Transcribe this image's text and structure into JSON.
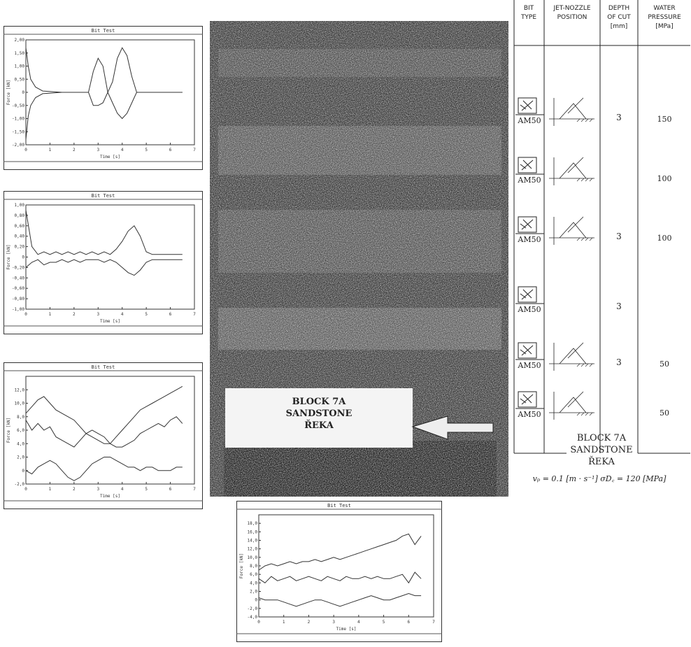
{
  "chart_data": [
    {
      "type": "line",
      "title": "Bit Test",
      "x_label": "Time [s]",
      "y_label": "Force [kN]",
      "xlim": [
        0,
        7
      ],
      "xticks": [
        0,
        1,
        2,
        3,
        4,
        5,
        6,
        7
      ],
      "ylim": [
        -2,
        2
      ],
      "yticks": [
        {
          "value": -2,
          "label": "-2,00"
        },
        {
          "value": -1.5,
          "label": "-1,50"
        },
        {
          "value": -1,
          "label": "-1,00"
        },
        {
          "value": -0.5,
          "label": "-0,50"
        },
        0,
        {
          "value": 0.5,
          "label": "0,50"
        },
        {
          "value": 1,
          "label": "1,00"
        },
        {
          "value": 1.5,
          "label": "1,50"
        },
        {
          "value": 2,
          "label": "2,00"
        }
      ],
      "x": [
        0,
        0.1,
        0.2,
        0.4,
        0.7,
        1.5,
        2.6,
        2.8,
        3.0,
        3.2,
        3.4,
        3.6,
        3.8,
        4.0,
        4.2,
        4.4,
        4.6,
        5.5,
        6.5
      ],
      "series": [
        {
          "color": "#333333",
          "values": [
            1.7,
            1.0,
            0.5,
            0.2,
            0.05,
            0,
            0,
            0.8,
            1.3,
            1.0,
            0,
            0.4,
            1.3,
            1.7,
            1.4,
            0.6,
            0,
            0,
            0
          ]
        },
        {
          "color": "#333333",
          "values": [
            -1.8,
            -0.9,
            -0.5,
            -0.2,
            -0.05,
            0,
            0,
            -0.5,
            -0.5,
            -0.4,
            0,
            -0.4,
            -0.8,
            -1.0,
            -0.8,
            -0.4,
            0,
            0,
            0
          ]
        }
      ]
    },
    {
      "type": "line",
      "title": "Bit Test",
      "x_label": "Time [s]",
      "y_label": "Force [kN]",
      "xlim": [
        0,
        7
      ],
      "xticks": [
        0,
        1,
        2,
        3,
        4,
        5,
        6,
        7
      ],
      "ylim": [
        -1,
        1
      ],
      "yticks": [
        {
          "value": -1,
          "label": "-1,00"
        },
        {
          "value": -0.8,
          "label": "-0,80"
        },
        {
          "value": -0.6,
          "label": "-0,60"
        },
        {
          "value": -0.4,
          "label": "-0,40"
        },
        {
          "value": -0.2,
          "label": "-0,20"
        },
        0,
        {
          "value": 0.2,
          "label": "0,20"
        },
        {
          "value": 0.4,
          "label": "0,40"
        },
        {
          "value": 0.6,
          "label": "0,60"
        },
        {
          "value": 0.8,
          "label": "0,80"
        },
        {
          "value": 1,
          "label": "1,00"
        }
      ],
      "x": [
        0,
        0.25,
        0.5,
        0.75,
        1,
        1.25,
        1.5,
        1.75,
        2,
        2.25,
        2.5,
        2.75,
        3,
        3.25,
        3.5,
        3.75,
        4,
        4.25,
        4.5,
        4.75,
        5,
        5.25,
        5.5,
        5.75,
        6,
        6.25,
        6.5
      ],
      "series": [
        {
          "color": "#333333",
          "values": [
            0.9,
            0.2,
            0.05,
            0.1,
            0.05,
            0.1,
            0.05,
            0.1,
            0.05,
            0.1,
            0.05,
            0.1,
            0.05,
            0.1,
            0.05,
            0.15,
            0.3,
            0.5,
            0.6,
            0.4,
            0.1,
            0.05,
            0.05,
            0.05,
            0.05,
            0.05,
            0.05
          ]
        },
        {
          "color": "#333333",
          "values": [
            -0.2,
            -0.1,
            -0.05,
            -0.15,
            -0.1,
            -0.1,
            -0.05,
            -0.1,
            -0.05,
            -0.1,
            -0.05,
            -0.05,
            -0.05,
            -0.1,
            -0.05,
            -0.1,
            -0.2,
            -0.3,
            -0.35,
            -0.25,
            -0.1,
            -0.05,
            -0.05,
            -0.05,
            -0.05,
            -0.05,
            -0.05
          ]
        }
      ]
    },
    {
      "type": "line",
      "title": "Bit Test",
      "x_label": "Time [s]",
      "y_label": "Force [kN]",
      "xlim": [
        0,
        7
      ],
      "xticks": [
        0,
        1,
        2,
        3,
        4,
        5,
        6,
        7
      ],
      "ylim": [
        -2,
        14
      ],
      "yticks": [
        {
          "value": -2,
          "label": "-2,0"
        },
        0,
        {
          "value": 2,
          "label": "2,0"
        },
        {
          "value": 4,
          "label": "4,0"
        },
        {
          "value": 6,
          "label": "6,0"
        },
        {
          "value": 8,
          "label": "8,0"
        },
        {
          "value": 10,
          "label": "10,0"
        },
        {
          "value": 12,
          "label": "12,0"
        }
      ],
      "x": [
        0,
        0.25,
        0.5,
        0.75,
        1,
        1.25,
        1.5,
        1.75,
        2,
        2.25,
        2.5,
        2.75,
        3,
        3.25,
        3.5,
        3.75,
        4,
        4.25,
        4.5,
        4.75,
        5,
        5.25,
        5.5,
        5.75,
        6,
        6.25,
        6.5
      ],
      "series": [
        {
          "color": "#333333",
          "values": [
            8.5,
            9.5,
            10.5,
            11,
            10,
            9,
            8.5,
            8,
            7.5,
            6.5,
            5.5,
            5,
            4.5,
            4,
            4,
            5,
            6,
            7,
            8,
            9,
            9.5,
            10,
            10.5,
            11,
            11.5,
            12,
            12.5
          ]
        },
        {
          "color": "#333333",
          "values": [
            7.5,
            6,
            7,
            6,
            6.5,
            5,
            4.5,
            4,
            3.5,
            4.5,
            5.5,
            6,
            5.5,
            5,
            4,
            3.5,
            3.5,
            4,
            4.5,
            5.5,
            6,
            6.5,
            7,
            6.5,
            7.5,
            8,
            7
          ]
        },
        {
          "color": "#333333",
          "values": [
            0,
            -0.5,
            0.5,
            1,
            1.5,
            1,
            0,
            -1,
            -1.5,
            -1,
            0,
            1,
            1.5,
            2,
            2,
            1.5,
            1,
            0.5,
            0.5,
            0,
            0.5,
            0.5,
            0,
            0,
            0,
            0.5,
            0.5
          ]
        }
      ]
    },
    {
      "type": "line",
      "title": "Bit Test",
      "x_label": "Time [s]",
      "y_label": "Force [kN]",
      "xlim": [
        0,
        7
      ],
      "xticks": [
        0,
        1,
        2,
        3,
        4,
        5,
        6,
        7
      ],
      "ylim": [
        -4,
        20
      ],
      "yticks": [
        {
          "value": -4,
          "label": "-4,0"
        },
        {
          "value": -2,
          "label": "-2,0"
        },
        0,
        {
          "value": 2,
          "label": "2,0"
        },
        {
          "value": 4,
          "label": "4,0"
        },
        {
          "value": 6,
          "label": "6,0"
        },
        {
          "value": 8,
          "label": "8,0"
        },
        {
          "value": 10,
          "label": "10,0"
        },
        {
          "value": 12,
          "label": "12,0"
        },
        {
          "value": 14,
          "label": "14,0"
        },
        {
          "value": 16,
          "label": "16,0"
        },
        {
          "value": 18,
          "label": "18,0"
        }
      ],
      "x": [
        0,
        0.25,
        0.5,
        0.75,
        1,
        1.25,
        1.5,
        1.75,
        2,
        2.25,
        2.5,
        2.75,
        3,
        3.25,
        3.5,
        3.75,
        4,
        4.25,
        4.5,
        4.75,
        5,
        5.25,
        5.5,
        5.75,
        6,
        6.25,
        6.5
      ],
      "series": [
        {
          "color": "#333333",
          "values": [
            7,
            8,
            8.5,
            8,
            8.5,
            9,
            8.5,
            9,
            9,
            9.5,
            9,
            9.5,
            10,
            9.5,
            10,
            10.5,
            11,
            11.5,
            12,
            12.5,
            13,
            13.5,
            14,
            15,
            15.5,
            13,
            15
          ]
        },
        {
          "color": "#333333",
          "values": [
            5,
            4,
            5.5,
            4.5,
            5,
            5.5,
            4.5,
            5,
            5.5,
            5,
            4.5,
            5.5,
            5,
            4.5,
            5.5,
            5,
            5,
            5.5,
            5,
            5.5,
            5,
            5,
            5.5,
            6,
            4,
            6.5,
            5
          ]
        },
        {
          "color": "#333333",
          "values": [
            0.5,
            0,
            0,
            0,
            -0.5,
            -1,
            -1.5,
            -1,
            -0.5,
            0,
            0,
            -0.5,
            -1,
            -1.5,
            -1,
            -0.5,
            0,
            0.5,
            1,
            0.5,
            0,
            0,
            0.5,
            1,
            1.5,
            1,
            1
          ]
        }
      ]
    }
  ],
  "photo": {
    "label_lines": [
      "BLOCK 7A",
      "SANDSTONE",
      "ŘEKA"
    ]
  },
  "table": {
    "headers": [
      [
        "BIT",
        "TYPE"
      ],
      [
        "JET-NOZZLE",
        "POSITION"
      ],
      [
        "DEPTH",
        "OF CUT",
        "[mm]"
      ],
      [
        "WATER",
        "PRESSURE",
        "[MPa]"
      ]
    ],
    "rows": [
      {
        "bit": "AM50",
        "depth": 3,
        "pressure": 150
      },
      {
        "bit": "AM50",
        "depth": null,
        "pressure": 100
      },
      {
        "bit": "AM50",
        "depth": 3,
        "pressure": 100
      },
      {
        "bit": "AM50",
        "depth": 3,
        "pressure": null
      },
      {
        "bit": "AM50",
        "depth": 3,
        "pressure": 50
      },
      {
        "bit": "AM50",
        "depth": null,
        "pressure": 50
      }
    ]
  },
  "caption": {
    "lines": [
      "BLOCK 7A",
      "SANDSTONE",
      "ŘEKA"
    ],
    "formula": "vₚ = 0.1  [m · s⁻¹]    σD꜀ = 120  [MPa]"
  }
}
